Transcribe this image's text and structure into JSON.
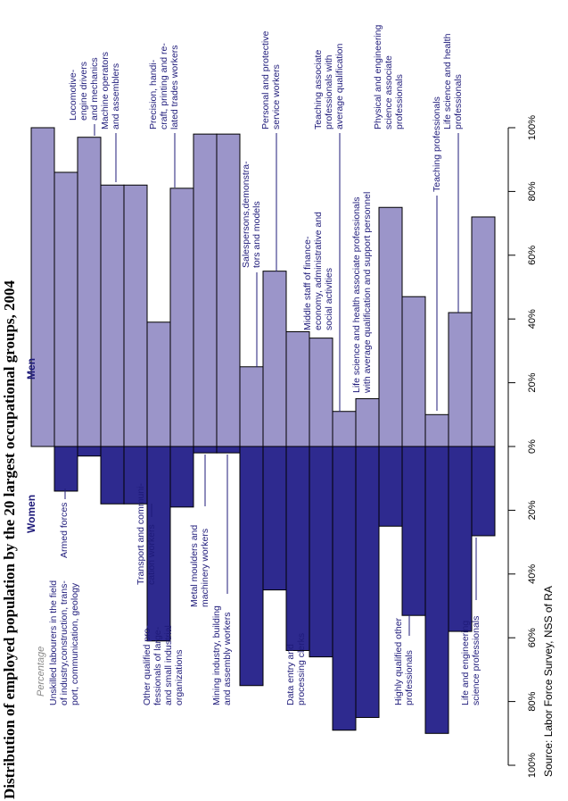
{
  "chart_data": {
    "type": "bar",
    "title": "Distribution of employed population by the 20 largest occupational groups, 2004",
    "subtitle": "Percentage",
    "source": "Source: Labor Force Survey, NSS of RA",
    "categories": [
      "Armed forces",
      "Unskilled labourers in the field\nof industry,construction, trans-\nport, communication, geology",
      "Locomotive-\nengine drivers\nand mechanics",
      "Transport and communi-\ncation workers",
      "Machine operators\nand assemblers",
      "Other qualified pro-\nfessionals of large-\nand small industrial\norganizations",
      "Precision, handi-\ncraft, printing and re-\nlated trades workers",
      "Metal moulders and\nmachinery workers",
      "Mining industry, building\nand assembly workers",
      "Salespersons,demonstra-\ntors and models",
      "Personal and protective\nservice workers",
      "Data entry and\nprocessing clerks",
      "Middle staff of finance-\neconomy, administrative and\nsocial activities",
      "Teaching associate\nprofessionals with\naverage qualification",
      "Life science and health associate professionals\nwith average qualification and support personnel",
      "Physical and engineering\nscience associate\nprofessionals",
      "Highly qualified other\nprofessionals",
      "Teaching professionals",
      "Life science and health\nprofessionals",
      "Life and engineering\nscience professionals"
    ],
    "series": [
      {
        "name": "Men",
        "color": "#9b95c9",
        "values": [
          100,
          86,
          97,
          82,
          82,
          39,
          81,
          98,
          98,
          25,
          55,
          36,
          34,
          11,
          15,
          75,
          47,
          10,
          42,
          72
        ]
      },
      {
        "name": "Women",
        "color": "#2e2a8f",
        "values": [
          0,
          14,
          3,
          18,
          18,
          61,
          19,
          2,
          2,
          75,
          45,
          64,
          66,
          89,
          85,
          25,
          53,
          90,
          58,
          28
        ]
      }
    ],
    "xlim": [
      -100,
      100
    ],
    "xticks": [
      {
        "value": -100,
        "label": "100%"
      },
      {
        "value": -80,
        "label": "80%"
      },
      {
        "value": -60,
        "label": "60%"
      },
      {
        "value": -40,
        "label": "40%"
      },
      {
        "value": -20,
        "label": "20%"
      },
      {
        "value": 0,
        "label": "0%"
      },
      {
        "value": 20,
        "label": "20%"
      },
      {
        "value": 40,
        "label": "40%"
      },
      {
        "value": 60,
        "label": "60%"
      },
      {
        "value": 80,
        "label": "80%"
      },
      {
        "value": 100,
        "label": "100%"
      }
    ]
  }
}
